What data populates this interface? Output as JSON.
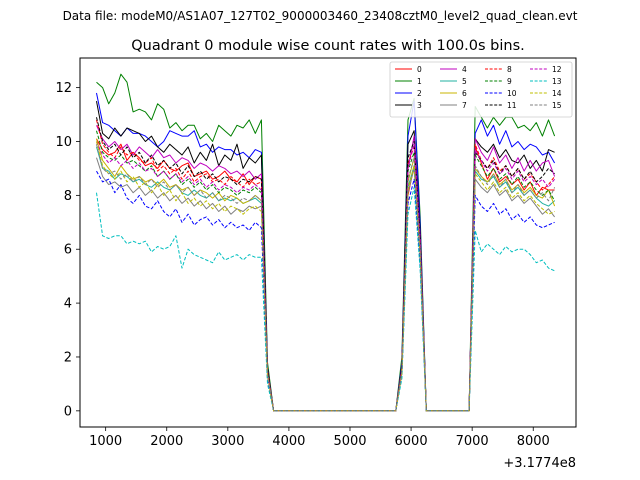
{
  "figure": {
    "suptitle": "Data file: modeM0/AS1A07_127T02_9000003460_23408cztM0_level2_quad_clean.evt"
  },
  "chart_data": {
    "type": "line",
    "title": "Quadrant 0 module wise count rates with 100.0s bins.",
    "xlabel": "",
    "ylabel": "",
    "x_offset_label": "+3.1774e8",
    "xlim": [
      580,
      8700
    ],
    "ylim": [
      -0.6,
      13.1
    ],
    "xticks": [
      1000,
      2000,
      3000,
      4000,
      5000,
      6000,
      7000,
      8000
    ],
    "yticks": [
      0,
      2,
      4,
      6,
      8,
      10,
      12
    ],
    "x": [
      850,
      950,
      1050,
      1150,
      1250,
      1350,
      1450,
      1550,
      1650,
      1750,
      1850,
      1950,
      2050,
      2150,
      2250,
      2350,
      2450,
      2550,
      2650,
      2750,
      2850,
      2950,
      3050,
      3150,
      3250,
      3350,
      3450,
      3550,
      3650,
      3750,
      5750,
      5850,
      5950,
      6050,
      6150,
      6250,
      6950,
      7050,
      7150,
      7250,
      7350,
      7450,
      7550,
      7650,
      7750,
      7850,
      7950,
      8050,
      8150,
      8250,
      8350
    ],
    "legend": {
      "location": "upper right",
      "columns": 4
    },
    "series": [
      {
        "name": "0",
        "color": "#ff0000",
        "dash": "solid",
        "values": [
          10.1,
          9.7,
          9.5,
          9.6,
          9.9,
          9.3,
          9.6,
          9.4,
          9.1,
          9.2,
          9.0,
          9.3,
          9.0,
          8.9,
          9.1,
          9.2,
          8.7,
          8.8,
          8.9,
          8.6,
          8.7,
          8.9,
          8.6,
          8.5,
          8.8,
          8.4,
          8.7,
          8.6,
          1.5,
          0,
          0,
          1.5,
          8.0,
          9.1,
          6.2,
          0,
          0,
          9.8,
          9.2,
          8.6,
          9.0,
          8.5,
          8.7,
          8.4,
          8.6,
          8.2,
          8.5,
          8.0,
          8.3,
          8.2,
          8.2
        ]
      },
      {
        "name": "1",
        "color": "#008000",
        "dash": "solid",
        "values": [
          12.2,
          12.0,
          11.4,
          11.8,
          12.5,
          12.2,
          11.1,
          11.2,
          11.1,
          10.8,
          11.4,
          11.2,
          10.5,
          10.7,
          10.4,
          10.6,
          10.6,
          10.1,
          10.3,
          10.0,
          10.6,
          10.4,
          10.2,
          10.6,
          10.5,
          10.8,
          10.3,
          10.8,
          1.8,
          0,
          0,
          2.0,
          10.8,
          11.6,
          7.2,
          0,
          0,
          11.3,
          10.9,
          10.5,
          10.9,
          10.6,
          10.9,
          10.9,
          10.5,
          10.6,
          10.4,
          10.7,
          10.2,
          10.8,
          10.2
        ]
      },
      {
        "name": "2",
        "color": "#0000ff",
        "dash": "solid",
        "values": [
          11.8,
          10.7,
          10.6,
          10.4,
          10.2,
          10.5,
          10.3,
          10.3,
          10.2,
          10.0,
          9.8,
          10.0,
          10.4,
          10.3,
          10.2,
          10.2,
          10.4,
          9.8,
          9.9,
          9.6,
          9.8,
          9.7,
          9.7,
          9.5,
          9.6,
          9.4,
          9.7,
          9.6,
          1.6,
          0,
          0,
          1.8,
          10.2,
          11.5,
          6.9,
          0,
          0,
          10.3,
          10.8,
          10.2,
          10.6,
          9.9,
          10.4,
          9.8,
          10.0,
          9.7,
          9.9,
          9.8,
          9.5,
          9.6,
          9.2
        ]
      },
      {
        "name": "3",
        "color": "#000000",
        "dash": "solid",
        "values": [
          11.5,
          10.3,
          10.1,
          10.5,
          10.2,
          10.5,
          10.4,
          10.3,
          10.0,
          10.2,
          9.8,
          9.6,
          9.9,
          9.7,
          9.5,
          9.8,
          9.2,
          9.6,
          9.3,
          9.9,
          9.1,
          9.5,
          9.3,
          9.9,
          9.0,
          9.4,
          9.2,
          9.5,
          1.6,
          0,
          0,
          1.7,
          9.9,
          10.4,
          6.6,
          0,
          0,
          10.1,
          9.8,
          9.6,
          9.9,
          9.4,
          9.7,
          9.3,
          9.2,
          9.5,
          9.0,
          9.3,
          8.9,
          9.7,
          9.6
        ]
      },
      {
        "name": "4",
        "color": "#bf00bf",
        "dash": "solid",
        "values": [
          10.6,
          10.1,
          9.8,
          10.0,
          9.7,
          9.9,
          9.5,
          9.8,
          9.6,
          9.4,
          9.7,
          9.4,
          9.5,
          9.2,
          9.4,
          9.3,
          9.0,
          9.2,
          9.1,
          8.9,
          9.1,
          9.0,
          8.8,
          8.9,
          8.7,
          8.9,
          8.6,
          8.8,
          1.5,
          0,
          0,
          1.6,
          9.0,
          10.2,
          6.4,
          0,
          0,
          10.1,
          9.6,
          9.3,
          9.8,
          9.2,
          9.5,
          9.0,
          9.4,
          8.9,
          9.3,
          8.9,
          9.2,
          9.3,
          8.7
        ]
      },
      {
        "name": "5",
        "color": "#20b0a0",
        "dash": "solid",
        "values": [
          9.8,
          9.0,
          8.9,
          8.6,
          8.8,
          8.7,
          8.5,
          8.6,
          8.4,
          8.3,
          8.5,
          8.3,
          8.2,
          8.4,
          8.1,
          8.0,
          8.2,
          8.0,
          7.9,
          8.1,
          7.8,
          7.9,
          7.8,
          7.9,
          7.7,
          7.8,
          7.9,
          7.7,
          1.4,
          0,
          0,
          1.5,
          8.3,
          9.1,
          5.8,
          0,
          0,
          8.9,
          8.6,
          8.5,
          8.7,
          8.3,
          8.5,
          8.1,
          8.3,
          8.0,
          8.2,
          7.9,
          7.7,
          7.6,
          7.8
        ]
      },
      {
        "name": "6",
        "color": "#c8b400",
        "dash": "solid",
        "values": [
          10.1,
          9.3,
          9.0,
          8.7,
          9.1,
          8.8,
          8.6,
          8.7,
          8.5,
          8.6,
          8.4,
          8.6,
          8.3,
          8.4,
          8.2,
          8.3,
          8.0,
          8.2,
          8.1,
          7.9,
          8.1,
          7.8,
          8.0,
          7.9,
          7.7,
          7.8,
          8.0,
          7.8,
          1.4,
          0,
          0,
          1.5,
          8.5,
          9.4,
          5.9,
          0,
          0,
          9.0,
          8.7,
          8.5,
          8.8,
          8.4,
          8.6,
          8.2,
          8.4,
          8.1,
          8.3,
          8.0,
          7.9,
          8.2,
          7.6
        ]
      },
      {
        "name": "7",
        "color": "#808080",
        "dash": "solid",
        "values": [
          9.4,
          8.7,
          8.4,
          8.5,
          8.3,
          8.4,
          8.1,
          8.3,
          8.0,
          8.2,
          7.9,
          8.1,
          7.8,
          8.0,
          7.7,
          7.9,
          7.6,
          7.8,
          7.5,
          7.7,
          7.4,
          7.6,
          7.3,
          7.5,
          7.4,
          7.6,
          7.5,
          7.6,
          1.3,
          0,
          0,
          1.4,
          8.1,
          9.0,
          5.7,
          0,
          0,
          8.6,
          8.3,
          8.1,
          8.4,
          8.0,
          8.2,
          7.8,
          8.0,
          7.7,
          7.9,
          7.6,
          7.3,
          7.5,
          7.2
        ]
      },
      {
        "name": "8",
        "color": "#ff0000",
        "dash": "dashed",
        "values": [
          10.8,
          9.9,
          9.6,
          9.4,
          9.8,
          9.5,
          9.6,
          9.3,
          9.2,
          9.4,
          8.9,
          9.1,
          8.8,
          9.0,
          8.6,
          8.9,
          8.5,
          8.7,
          8.8,
          8.5,
          8.6,
          8.4,
          8.7,
          8.5,
          8.3,
          8.6,
          8.4,
          8.5,
          1.5,
          0,
          0,
          1.6,
          9.2,
          9.8,
          6.3,
          0,
          0,
          9.9,
          9.3,
          9.0,
          9.4,
          8.9,
          9.1,
          8.7,
          9.0,
          8.6,
          8.8,
          8.5,
          8.2,
          8.4,
          8.7
        ]
      },
      {
        "name": "9",
        "color": "#008000",
        "dash": "dashed",
        "values": [
          10.4,
          9.6,
          9.4,
          9.3,
          9.5,
          9.2,
          9.3,
          9.1,
          8.9,
          9.1,
          8.7,
          8.9,
          8.6,
          8.8,
          8.4,
          8.6,
          8.3,
          8.5,
          8.2,
          8.4,
          8.1,
          8.3,
          8.2,
          8.0,
          8.2,
          8.1,
          8.3,
          8.1,
          1.4,
          0,
          0,
          1.5,
          8.9,
          9.6,
          6.1,
          0,
          0,
          9.5,
          9.1,
          8.7,
          9.0,
          8.6,
          8.8,
          8.4,
          8.7,
          8.3,
          8.5,
          8.2,
          8.0,
          8.2,
          7.8
        ]
      },
      {
        "name": "10",
        "color": "#0000ff",
        "dash": "dashed",
        "values": [
          8.9,
          8.5,
          8.6,
          8.1,
          8.4,
          7.9,
          7.7,
          8.0,
          7.6,
          7.5,
          7.8,
          7.4,
          7.2,
          7.5,
          7.0,
          7.3,
          6.9,
          7.1,
          7.2,
          6.9,
          7.1,
          6.8,
          7.0,
          6.8,
          6.9,
          6.7,
          7.0,
          6.8,
          1.2,
          0,
          0,
          1.3,
          7.7,
          8.6,
          5.4,
          0,
          0,
          8.0,
          7.6,
          7.4,
          7.7,
          7.3,
          7.5,
          7.1,
          7.3,
          7.0,
          7.2,
          6.9,
          6.8,
          6.9,
          7.0
        ]
      },
      {
        "name": "11",
        "color": "#000000",
        "dash": "dashed",
        "values": [
          10.9,
          10.0,
          9.7,
          9.9,
          9.5,
          9.8,
          9.4,
          9.6,
          9.2,
          9.5,
          9.1,
          9.3,
          9.0,
          9.2,
          8.8,
          9.1,
          8.7,
          8.9,
          8.6,
          8.8,
          8.5,
          8.7,
          8.6,
          8.4,
          8.6,
          8.5,
          8.7,
          8.6,
          1.5,
          0,
          0,
          1.6,
          9.4,
          10.0,
          6.3,
          0,
          0,
          9.6,
          9.3,
          9.0,
          9.3,
          8.8,
          9.1,
          8.7,
          9.0,
          8.6,
          8.9,
          8.5,
          8.7,
          9.0,
          8.8
        ]
      },
      {
        "name": "12",
        "color": "#bf00bf",
        "dash": "dashed",
        "values": [
          10.0,
          9.5,
          9.2,
          9.4,
          9.1,
          9.3,
          9.0,
          9.2,
          8.9,
          9.0,
          8.7,
          8.9,
          8.6,
          8.8,
          8.5,
          8.7,
          8.4,
          8.6,
          8.3,
          8.5,
          8.2,
          8.4,
          8.3,
          8.1,
          8.3,
          8.2,
          8.4,
          8.2,
          1.4,
          0,
          0,
          1.5,
          9.0,
          9.9,
          6.2,
          0,
          0,
          9.7,
          9.3,
          8.9,
          9.2,
          8.8,
          9.0,
          8.6,
          8.9,
          8.5,
          8.7,
          8.4,
          8.6,
          8.3,
          8.6
        ]
      },
      {
        "name": "13",
        "color": "#00bfbf",
        "dash": "dashed",
        "values": [
          8.1,
          6.5,
          6.4,
          6.5,
          6.5,
          6.2,
          6.3,
          6.2,
          6.3,
          5.9,
          6.1,
          6.0,
          6.1,
          6.5,
          5.3,
          6.0,
          5.8,
          5.7,
          5.6,
          5.5,
          5.9,
          5.6,
          5.7,
          5.8,
          5.6,
          5.8,
          5.7,
          5.7,
          1.0,
          0,
          0,
          1.2,
          7.3,
          8.3,
          5.2,
          0,
          0,
          6.7,
          5.9,
          6.2,
          6.0,
          5.8,
          6.1,
          5.9,
          6.0,
          6.0,
          5.8,
          5.5,
          5.6,
          5.3,
          5.2
        ]
      },
      {
        "name": "14",
        "color": "#bfbf00",
        "dash": "dashed",
        "values": [
          10.0,
          9.1,
          8.8,
          8.6,
          8.9,
          8.5,
          8.7,
          8.3,
          8.5,
          8.1,
          8.4,
          8.0,
          8.2,
          7.8,
          8.1,
          7.7,
          7.9,
          7.6,
          7.8,
          7.5,
          7.7,
          7.4,
          7.6,
          7.5,
          7.3,
          7.5,
          7.6,
          7.4,
          1.3,
          0,
          0,
          1.4,
          8.2,
          9.1,
          5.8,
          0,
          0,
          8.8,
          8.5,
          8.2,
          8.5,
          8.1,
          8.3,
          7.9,
          8.1,
          7.8,
          8.0,
          7.7,
          7.5,
          7.3,
          7.4
        ]
      },
      {
        "name": "15",
        "color": "#808080",
        "dash": "dashed",
        "values": [
          9.9,
          9.0,
          8.8,
          8.9,
          8.6,
          8.8,
          8.5,
          8.7,
          8.4,
          8.6,
          8.3,
          8.5,
          8.2,
          8.4,
          8.1,
          8.3,
          8.0,
          8.2,
          7.9,
          8.1,
          7.8,
          8.0,
          7.9,
          7.7,
          7.9,
          7.8,
          8.0,
          7.8,
          1.4,
          0,
          0,
          1.5,
          8.6,
          9.4,
          6.0,
          0,
          0,
          9.1,
          8.7,
          8.4,
          8.8,
          8.3,
          8.6,
          8.1,
          8.4,
          8.0,
          8.2,
          7.9,
          8.1,
          7.8,
          8.3
        ]
      }
    ]
  }
}
